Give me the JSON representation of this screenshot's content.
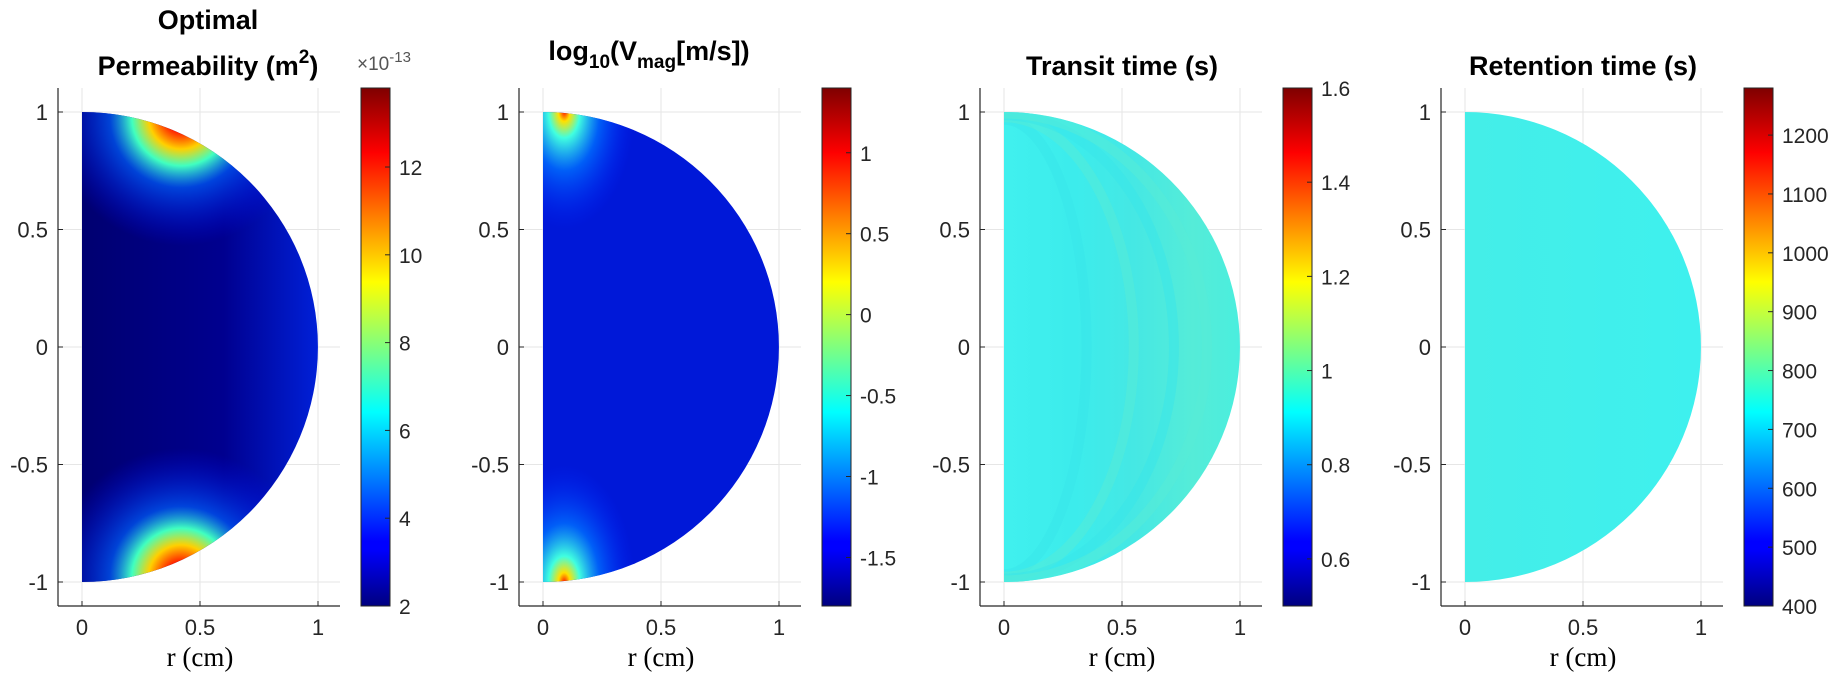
{
  "chart_data": [
    {
      "type": "heatmap",
      "title_lines": [
        "Optimal",
        "Permeability (m",
        "2",
        ")"
      ],
      "xlabel": "r (cm)",
      "xlim": [
        0,
        1
      ],
      "ylim": [
        -1,
        1
      ],
      "x_ticks": [
        "0",
        "0.5",
        "1"
      ],
      "y_ticks": [
        "1",
        "0.5",
        "0",
        "-0.5",
        "-1"
      ],
      "colorbar": {
        "range": [
          2,
          13.8
        ],
        "ticks": [
          2,
          4,
          6,
          8,
          10,
          12
        ],
        "tick_labels": [
          "2",
          "4",
          "6",
          "8",
          "10",
          "12"
        ],
        "exponent_base": "×10",
        "exponent_power": "-13"
      },
      "field": "permeability",
      "grid": true
    },
    {
      "type": "heatmap",
      "title_parts": [
        "log",
        "10",
        "(V",
        "mag",
        "[m/s])"
      ],
      "xlabel": "r (cm)",
      "xlim": [
        0,
        1
      ],
      "ylim": [
        -1,
        1
      ],
      "x_ticks": [
        "0",
        "0.5",
        "1"
      ],
      "y_ticks": [
        "1",
        "0.5",
        "0",
        "-0.5",
        "-1"
      ],
      "colorbar": {
        "range": [
          -1.8,
          1.4
        ],
        "ticks": [
          1,
          0.5,
          0,
          -0.5,
          -1,
          -1.5
        ],
        "tick_labels": [
          "1",
          "0.5",
          "0",
          "-0.5",
          "-1",
          "-1.5"
        ]
      },
      "field": "velocity",
      "grid": true
    },
    {
      "type": "heatmap",
      "title": "Transit time (s)",
      "xlabel": "r (cm)",
      "xlim": [
        0,
        1
      ],
      "ylim": [
        -1,
        1
      ],
      "x_ticks": [
        "0",
        "0.5",
        "1"
      ],
      "y_ticks": [
        "1",
        "0.5",
        "0",
        "-0.5",
        "-1"
      ],
      "colorbar": {
        "range": [
          0.5,
          1.6
        ],
        "ticks": [
          1.6,
          1.4,
          1.2,
          1,
          0.8,
          0.6
        ],
        "tick_labels": [
          "1.6",
          "1.4",
          "1.2",
          "1",
          "0.8",
          "0.6"
        ]
      },
      "field": "transit",
      "grid": true
    },
    {
      "type": "heatmap",
      "title": "Retention time (s)",
      "xlabel": "r (cm)",
      "xlim": [
        0,
        1
      ],
      "ylim": [
        -1,
        1
      ],
      "x_ticks": [
        "0",
        "0.5",
        "1"
      ],
      "y_ticks": [
        "1",
        "0.5",
        "0",
        "-0.5",
        "-1"
      ],
      "colorbar": {
        "range": [
          400,
          1280
        ],
        "ticks": [
          1200,
          1100,
          1000,
          900,
          800,
          700,
          600,
          500,
          400
        ],
        "tick_labels": [
          "1200",
          "1100",
          "1000",
          "900",
          "800",
          "700",
          "600",
          "500",
          "400"
        ]
      },
      "field": "retention",
      "grid": true
    }
  ]
}
